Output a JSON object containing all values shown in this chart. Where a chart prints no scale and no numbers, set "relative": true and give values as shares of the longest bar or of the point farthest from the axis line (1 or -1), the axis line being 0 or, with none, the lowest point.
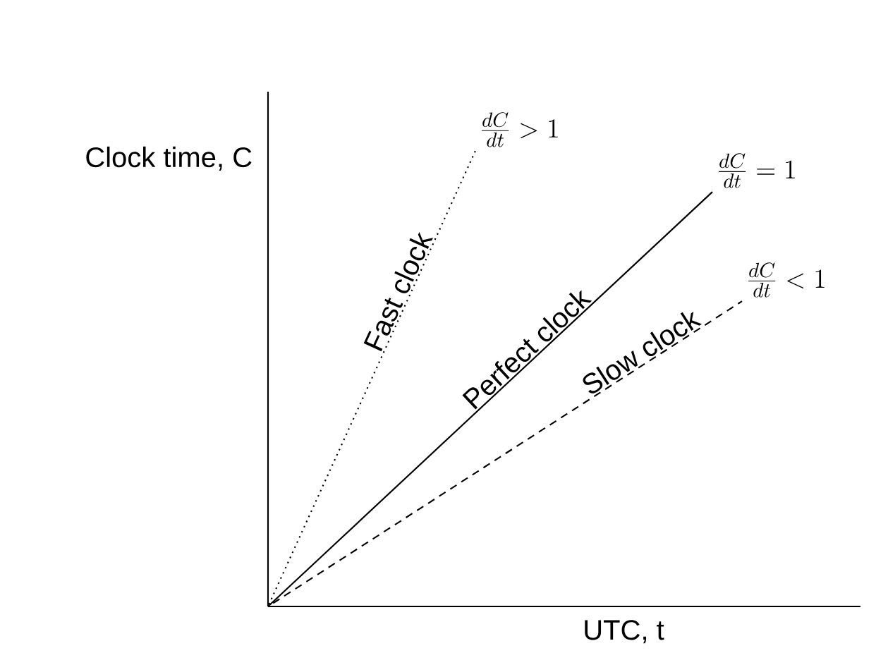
{
  "chart_data": {
    "type": "line",
    "relative": true,
    "xlabel": "UTC, t",
    "ylabel": "Clock time, C",
    "categories": [
      null,
      null,
      null,
      null,
      null,
      null,
      null,
      null,
      null,
      null,
      null,
      null,
      null,
      null,
      null,
      null,
      null,
      null,
      null,
      null,
      null
    ],
    "series": [
      {
        "name": "Fast clock",
        "color": "#000000",
        "line_style": "dotted",
        "values": [
          0,
          null,
          null,
          null,
          null,
          null,
          null,
          1,
          null,
          null,
          null,
          null,
          null,
          null,
          null,
          null,
          null,
          null,
          null,
          null,
          null
        ]
      },
      {
        "name": "Perfect clock",
        "color": "#000000",
        "line_style": "solid",
        "values": [
          0,
          null,
          null,
          null,
          null,
          null,
          null,
          null,
          null,
          null,
          null,
          null,
          null,
          null,
          null,
          0.91,
          null,
          null,
          null,
          null,
          null
        ]
      },
      {
        "name": "Slow clock",
        "color": "#000000",
        "line_style": "dashed",
        "values": [
          0,
          null,
          null,
          null,
          null,
          null,
          null,
          null,
          null,
          null,
          null,
          null,
          null,
          null,
          null,
          null,
          0.67,
          null,
          null,
          null,
          null
        ]
      }
    ],
    "annotations": [
      "\\frac{dC}{dt} > 1",
      "\\frac{dC}{dt} = 1",
      "\\frac{dC}{dt} < 1"
    ]
  }
}
